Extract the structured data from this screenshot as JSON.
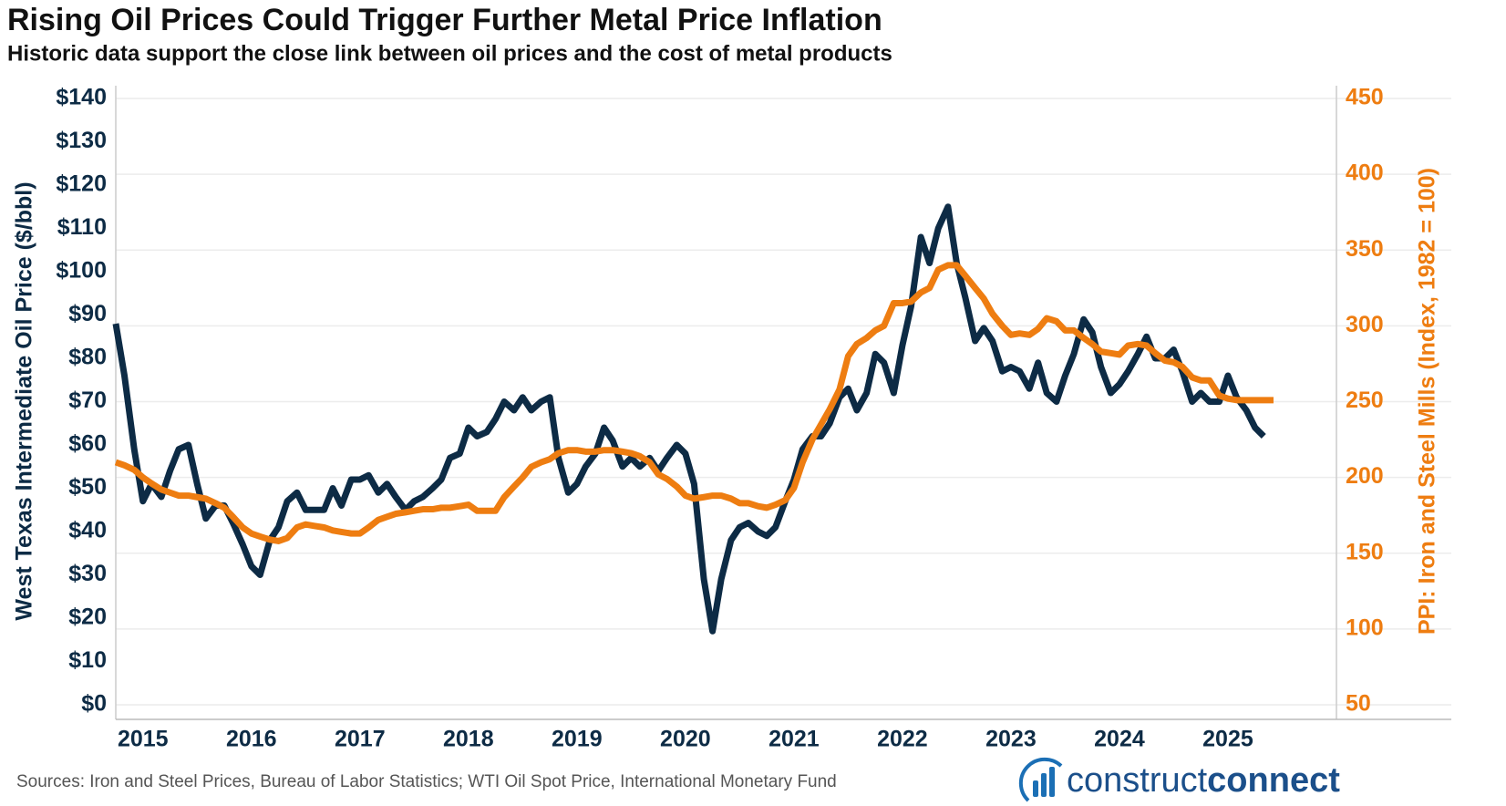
{
  "chart_data": {
    "type": "line",
    "title": "Rising Oil Prices Could Trigger Further Metal Price Inflation",
    "subtitle": "Historic data support the close link between oil prices and the cost of metal products",
    "ylabel": "West Texas Intermediate Oil Price ($/bbl)",
    "y2label": "PPI: Iron and Steel Mills (Index, 1982 = 100)",
    "xlim": [
      2014.75,
      2026
    ],
    "xticks": [
      2015,
      2016,
      2017,
      2018,
      2019,
      2020,
      2021,
      2022,
      2023,
      2024,
      2025
    ],
    "ylim": [
      0,
      140
    ],
    "yticks": [
      {
        "value": 0,
        "label": "$0"
      },
      {
        "value": 10,
        "label": "$10"
      },
      {
        "value": 20,
        "label": "$20"
      },
      {
        "value": 30,
        "label": "$30"
      },
      {
        "value": 40,
        "label": "$40"
      },
      {
        "value": 50,
        "label": "$50"
      },
      {
        "value": 60,
        "label": "$60"
      },
      {
        "value": 70,
        "label": "$70"
      },
      {
        "value": 80,
        "label": "$80"
      },
      {
        "value": 90,
        "label": "$90"
      },
      {
        "value": 100,
        "label": "$100"
      },
      {
        "value": 110,
        "label": "$110"
      },
      {
        "value": 120,
        "label": "$120"
      },
      {
        "value": 130,
        "label": "$130"
      },
      {
        "value": 140,
        "label": "$140"
      }
    ],
    "y2lim": [
      50,
      450
    ],
    "y2ticks": [
      50,
      100,
      150,
      200,
      250,
      300,
      350,
      400,
      450
    ],
    "grid": true,
    "x": [
      2014.75,
      2014.83,
      2014.92,
      2015.0,
      2015.08,
      2015.17,
      2015.25,
      2015.33,
      2015.42,
      2015.5,
      2015.58,
      2015.67,
      2015.75,
      2015.83,
      2015.92,
      2016.0,
      2016.08,
      2016.17,
      2016.25,
      2016.33,
      2016.42,
      2016.5,
      2016.58,
      2016.67,
      2016.75,
      2016.83,
      2016.92,
      2017.0,
      2017.08,
      2017.17,
      2017.25,
      2017.33,
      2017.42,
      2017.5,
      2017.58,
      2017.67,
      2017.75,
      2017.83,
      2017.92,
      2018.0,
      2018.08,
      2018.17,
      2018.25,
      2018.33,
      2018.42,
      2018.5,
      2018.58,
      2018.67,
      2018.75,
      2018.83,
      2018.92,
      2019.0,
      2019.08,
      2019.17,
      2019.25,
      2019.33,
      2019.42,
      2019.5,
      2019.58,
      2019.67,
      2019.75,
      2019.83,
      2019.92,
      2020.0,
      2020.08,
      2020.17,
      2020.25,
      2020.33,
      2020.42,
      2020.5,
      2020.58,
      2020.67,
      2020.75,
      2020.83,
      2020.92,
      2021.0,
      2021.08,
      2021.17,
      2021.25,
      2021.33,
      2021.42,
      2021.5,
      2021.58,
      2021.67,
      2021.75,
      2021.83,
      2021.92,
      2022.0,
      2022.08,
      2022.17,
      2022.25,
      2022.33,
      2022.42,
      2022.5,
      2022.58,
      2022.67,
      2022.75,
      2022.83,
      2022.92,
      2023.0,
      2023.08,
      2023.17,
      2023.25,
      2023.33,
      2023.42,
      2023.5,
      2023.58,
      2023.67,
      2023.75,
      2023.83,
      2023.92,
      2024.0,
      2024.08,
      2024.17,
      2024.25,
      2024.33,
      2024.42,
      2024.5,
      2024.58,
      2024.67,
      2024.75,
      2024.83,
      2024.92,
      2025.0,
      2025.08,
      2025.17,
      2025.25,
      2025.33,
      2025.42
    ],
    "series": [
      {
        "name": "West Texas Intermediate Oil Price",
        "color": "#0d2b45",
        "axis": "y",
        "values": [
          88,
          76,
          59,
          47,
          51,
          48,
          54,
          59,
          60,
          51,
          43,
          46,
          46,
          42,
          37,
          32,
          30,
          38,
          41,
          47,
          49,
          45,
          45,
          45,
          50,
          46,
          52,
          52,
          53,
          49,
          51,
          48,
          45,
          47,
          48,
          50,
          52,
          57,
          58,
          64,
          62,
          63,
          66,
          70,
          68,
          71,
          68,
          70,
          71,
          57,
          49,
          51,
          55,
          58,
          64,
          61,
          55,
          57,
          55,
          57,
          54,
          57,
          60,
          58,
          51,
          29,
          17,
          29,
          38,
          41,
          42,
          40,
          39,
          41,
          47,
          52,
          59,
          62,
          62,
          65,
          71,
          73,
          68,
          72,
          81,
          79,
          72,
          83,
          92,
          108,
          102,
          110,
          115,
          102,
          94,
          84,
          87,
          84,
          77,
          78,
          77,
          73,
          79,
          72,
          70,
          76,
          81,
          89,
          86,
          78,
          72,
          74,
          77,
          81,
          85,
          80,
          80,
          82,
          77,
          70,
          72,
          70,
          70,
          76,
          71,
          68,
          64,
          62,
          null
        ]
      },
      {
        "name": "PPI: Iron and Steel Mills",
        "color": "#ee7d11",
        "axis": "y2",
        "values": [
          210,
          208,
          205,
          200,
          196,
          192,
          190,
          188,
          188,
          187,
          186,
          183,
          180,
          174,
          167,
          163,
          161,
          159,
          158,
          160,
          167,
          169,
          168,
          167,
          165,
          164,
          163,
          163,
          167,
          172,
          174,
          176,
          177,
          178,
          179,
          179,
          180,
          180,
          181,
          182,
          178,
          178,
          178,
          187,
          194,
          200,
          207,
          210,
          212,
          216,
          218,
          218,
          217,
          217,
          218,
          218,
          217,
          216,
          214,
          210,
          202,
          199,
          194,
          188,
          186,
          187,
          188,
          188,
          186,
          183,
          183,
          181,
          180,
          182,
          185,
          193,
          210,
          225,
          235,
          245,
          258,
          280,
          288,
          292,
          297,
          300,
          315,
          315,
          316,
          322,
          325,
          337,
          340,
          340,
          333,
          325,
          318,
          308,
          300,
          294,
          295,
          294,
          298,
          305,
          303,
          297,
          297,
          292,
          288,
          283,
          282,
          281,
          287,
          288,
          287,
          282,
          277,
          276,
          273,
          266,
          264,
          264,
          254,
          252,
          251,
          251,
          251,
          251,
          251
        ]
      }
    ]
  },
  "footer": {
    "source": "Sources: Iron and Steel Prices, Bureau of Labor Statistics; WTI Oil Spot Price, International Monetary Fund",
    "logo": [
      "construct",
      "connect"
    ]
  }
}
